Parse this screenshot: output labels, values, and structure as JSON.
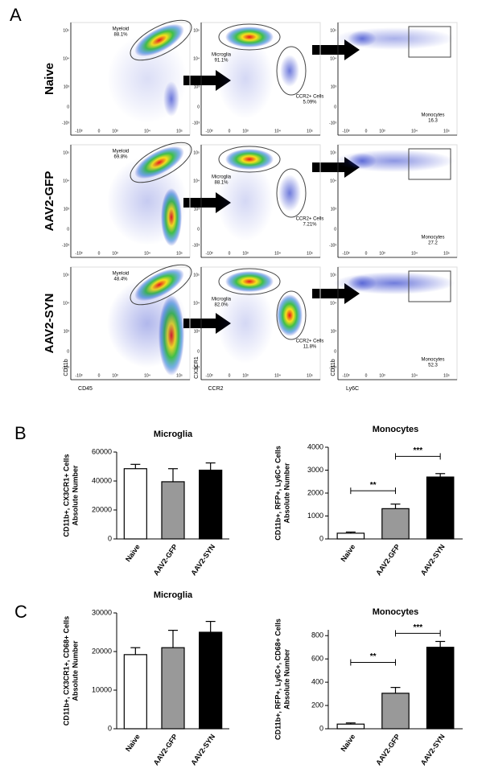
{
  "panel_a": {
    "label": "A",
    "row_names": [
      "Naive",
      "AAV2-GFP",
      "AAV2-SYN"
    ],
    "axis_labels": [
      {
        "y": "CD11b",
        "x": "CD45"
      },
      {
        "y": "CX3CR1",
        "x": "CCR2"
      },
      {
        "y": "CD11b",
        "x": "Ly6C"
      }
    ],
    "y_tick_labels": [
      "10⁵",
      "10⁴",
      "10³",
      "0",
      "-10³"
    ],
    "x_tick_labels": [
      "-10³",
      "0",
      "10³",
      "10⁴",
      "10⁵"
    ],
    "gates": [
      [
        [
          {
            "name": "Myeloid",
            "value": "88.1%"
          }
        ],
        [
          {
            "name": "Microglia",
            "value": "91.1%"
          },
          {
            "name": "CCR2+ Cells",
            "value": "5.09%"
          }
        ],
        [
          {
            "name": "Monocytes",
            "value": "16.3"
          }
        ]
      ],
      [
        [
          {
            "name": "Myeloid",
            "value": "69.8%"
          }
        ],
        [
          {
            "name": "Microglia",
            "value": "88.1%"
          },
          {
            "name": "CCR2+ Cells",
            "value": "7.21%"
          }
        ],
        [
          {
            "name": "Monocytes",
            "value": "27.2"
          }
        ]
      ],
      [
        [
          {
            "name": "Myeloid",
            "value": "48.4%"
          }
        ],
        [
          {
            "name": "Microglia",
            "value": "82.0%"
          },
          {
            "name": "CCR2+ Cells",
            "value": "11.8%"
          }
        ],
        [
          {
            "name": "Monocytes",
            "value": "52.3"
          }
        ]
      ]
    ]
  },
  "panel_b": {
    "label": "B"
  },
  "panel_c": {
    "label": "C"
  },
  "chart_data": [
    {
      "type": "bar",
      "title": "Microglia",
      "ylabel": [
        "CD11b+, CX3CR1+ Cells",
        "Absolute Number"
      ],
      "categories": [
        "Naive",
        "AAV2-GFP",
        "AAV2-SYN"
      ],
      "values": [
        48500,
        39500,
        47500
      ],
      "errors": [
        3000,
        9000,
        5000
      ],
      "colors": [
        "#ffffff",
        "#999999",
        "#000000"
      ],
      "ylim": [
        0,
        60000
      ],
      "yticks": [
        0,
        20000,
        40000,
        60000
      ]
    },
    {
      "type": "bar",
      "title": "Monocytes",
      "ylabel": [
        "CD11b+, RFP+, Ly6C+ Cells",
        "Absolute Number"
      ],
      "categories": [
        "Naive",
        "AAV2-GFP",
        "AAV2-SYN"
      ],
      "values": [
        250,
        1320,
        2700
      ],
      "errors": [
        50,
        200,
        150
      ],
      "colors": [
        "#ffffff",
        "#999999",
        "#000000"
      ],
      "ylim": [
        0,
        4000
      ],
      "yticks": [
        0,
        1000,
        2000,
        3000,
        4000
      ],
      "annotations": [
        {
          "text": "**",
          "from": 0,
          "to": 1,
          "y": 2100
        },
        {
          "text": "***",
          "from": 1,
          "to": 2,
          "y": 3600
        }
      ]
    },
    {
      "type": "bar",
      "title": "Microglia",
      "ylabel": [
        "CD11b+, CX3CR1+, CD68+ Cells",
        "Absolute Number"
      ],
      "categories": [
        "Naive",
        "AAV2-GFP",
        "AAV2-SYN"
      ],
      "values": [
        19200,
        21000,
        25000
      ],
      "errors": [
        1800,
        4500,
        2800
      ],
      "colors": [
        "#ffffff",
        "#999999",
        "#000000"
      ],
      "ylim": [
        0,
        30000
      ],
      "yticks": [
        0,
        10000,
        20000,
        30000
      ]
    },
    {
      "type": "bar",
      "title": "Monocytes",
      "ylabel": [
        "CD11b+, RFP+, Ly6C+, CD68+ Cells",
        "Absolute Number"
      ],
      "categories": [
        "Naive",
        "AAV2-GFP",
        "AAV2-SYN"
      ],
      "values": [
        40,
        305,
        700
      ],
      "errors": [
        10,
        50,
        50
      ],
      "colors": [
        "#ffffff",
        "#999999",
        "#000000"
      ],
      "ylim": [
        0,
        850
      ],
      "yticks": [
        0,
        200,
        400,
        600,
        800
      ],
      "annotations": [
        {
          "text": "**",
          "from": 0,
          "to": 1,
          "y": 570
        },
        {
          "text": "***",
          "from": 1,
          "to": 2,
          "y": 820
        }
      ]
    }
  ]
}
